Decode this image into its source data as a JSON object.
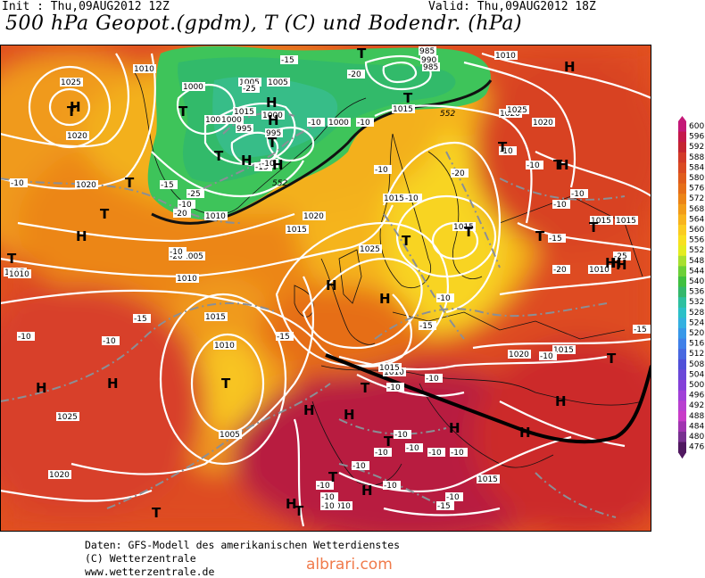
{
  "header": {
    "init": "Init : Thu,09AUG2012 12Z",
    "valid": "Valid: Thu,09AUG2012 18Z",
    "title": "500 hPa Geopot.(gpdm), T (C) und Bodendr. (hPa)"
  },
  "footer": {
    "line1": "Daten: GFS-Modell des amerikanischen Wetterdienstes",
    "line2": "(C) Wetterzentrale",
    "line3": "www.wetterzentrale.de",
    "watermark": "albrari.com"
  },
  "legend": {
    "values": [
      "600",
      "596",
      "592",
      "588",
      "584",
      "580",
      "576",
      "572",
      "568",
      "564",
      "560",
      "556",
      "552",
      "548",
      "544",
      "540",
      "536",
      "532",
      "528",
      "524",
      "520",
      "516",
      "512",
      "508",
      "504",
      "500",
      "496",
      "492",
      "488",
      "484",
      "480",
      "476"
    ],
    "colors": [
      "#c41877",
      "#c4184a",
      "#c42430",
      "#d23a28",
      "#da4a22",
      "#e05c1c",
      "#e66e18",
      "#ec8416",
      "#f29c18",
      "#f8b41c",
      "#fbcc20",
      "#f8e020",
      "#e4ec20",
      "#a8e030",
      "#6cd038",
      "#40c040",
      "#34b86c",
      "#2ec0a0",
      "#2cc0c8",
      "#34b0e0",
      "#3898e8",
      "#4080e8",
      "#4868e0",
      "#5050d8",
      "#6a48d8",
      "#8440d8",
      "#a040d8",
      "#b840d0",
      "#c83cc8",
      "#a034b0",
      "#783090",
      "#501860"
    ]
  },
  "map": {
    "isobar_labels": [
      "1025",
      "1020",
      "1010",
      "1000",
      "1005",
      "1015",
      "1000",
      "995",
      "985",
      "990",
      "985",
      "1005",
      "1015",
      "1010",
      "1015",
      "1020",
      "1025",
      "1020",
      "1015",
      "1010",
      "1015",
      "1020",
      "1025",
      "1015",
      "1015",
      "1010",
      "1005",
      "1010",
      "1020",
      "1025",
      "1020",
      "1015",
      "1010",
      "1005",
      "1010",
      "1015",
      "1010",
      "1015",
      "1020",
      "1015",
      "1015",
      "1015",
      "1010",
      "1000",
      "1000",
      "995",
      "1000"
    ],
    "temp_labels": [
      "-10",
      "-15",
      "-20",
      "-25",
      "-10",
      "-15",
      "-20",
      "-25",
      "-10",
      "-15",
      "-10",
      "-20",
      "-15",
      "-10",
      "-10",
      "-15",
      "-20",
      "-10",
      "-15",
      "-10",
      "-10",
      "-10",
      "-10",
      "-10",
      "-10",
      "-10",
      "-10",
      "-15",
      "-20",
      "-25",
      "-15",
      "-10",
      "-10",
      "-10",
      "-10",
      "-10",
      "-10",
      "-10",
      "-10",
      "-10",
      "-10",
      "-15",
      "-10",
      "-10",
      "-10",
      "-10"
    ],
    "contour_labels": [
      "552",
      "552"
    ],
    "highs": [
      "H",
      "H",
      "H",
      "H",
      "H",
      "H",
      "H",
      "H",
      "H",
      "H",
      "H",
      "H",
      "H",
      "H",
      "H",
      "H",
      "H",
      "H",
      "H",
      "H",
      "H",
      "H"
    ],
    "lows": [
      "T",
      "T",
      "T",
      "T",
      "T",
      "T",
      "T",
      "T",
      "T",
      "T",
      "T",
      "T",
      "T",
      "T",
      "T",
      "T",
      "T",
      "T",
      "T",
      "T",
      "T",
      "T"
    ]
  }
}
